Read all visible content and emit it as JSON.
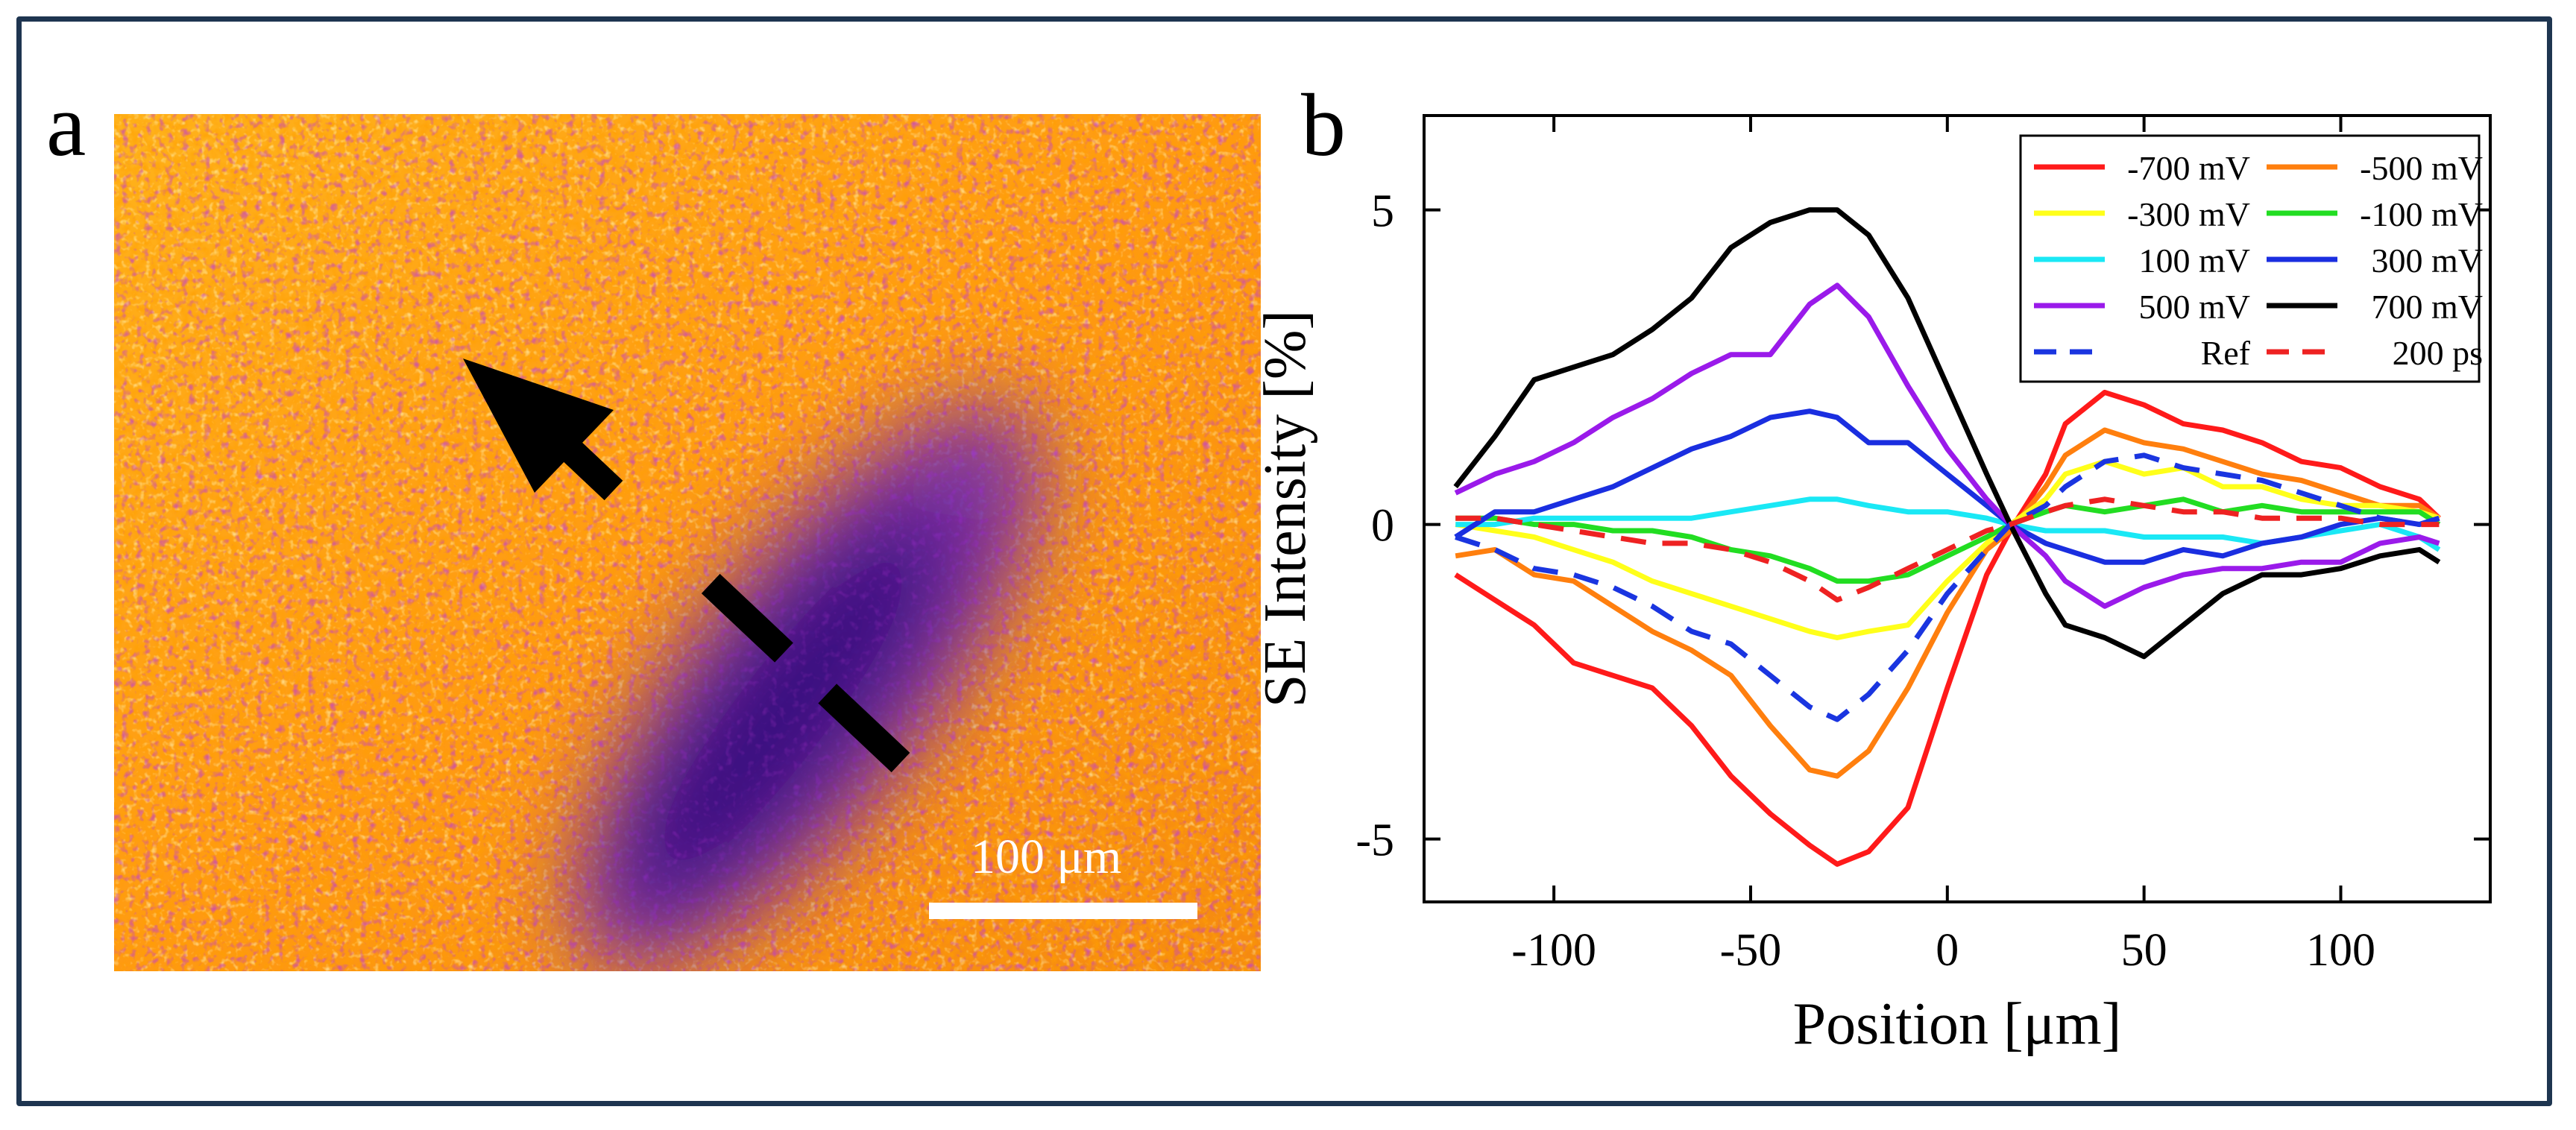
{
  "panels": {
    "a": "a",
    "b": "b"
  },
  "micrograph": {
    "scale_label": "100 μm",
    "arrow": "direction-of-profile"
  },
  "colors": {
    "frame": "#1e3550",
    "background": "#ffffff"
  },
  "chart_data": {
    "type": "line",
    "title": "",
    "xlabel": "Position [μm]",
    "ylabel": "SE Intensity [%]",
    "xlim": [
      -133,
      138
    ],
    "ylim": [
      -6,
      6.5
    ],
    "xticks": [
      -100,
      -50,
      0,
      50,
      100
    ],
    "yticks": [
      -5,
      0,
      5
    ],
    "grid": false,
    "legend_location": "top-right",
    "series": [
      {
        "name": "-700 mV",
        "color": "#ff1a1a",
        "dash": "solid",
        "x": [
          -125,
          -115,
          -105,
          -95,
          -85,
          -75,
          -65,
          -55,
          -45,
          -35,
          -28,
          -20,
          -10,
          0,
          10,
          16,
          25,
          30,
          40,
          50,
          60,
          70,
          80,
          90,
          100,
          110,
          120,
          125
        ],
        "y": [
          -0.8,
          -1.2,
          -1.6,
          -2.2,
          -2.4,
          -2.6,
          -3.2,
          -4.0,
          -4.6,
          -5.1,
          -5.4,
          -5.2,
          -4.5,
          -2.6,
          -0.8,
          -0.1,
          0.8,
          1.6,
          2.1,
          1.9,
          1.6,
          1.5,
          1.3,
          1.0,
          0.9,
          0.6,
          0.4,
          0.1
        ]
      },
      {
        "name": "-500 mV",
        "color": "#ff7f0e",
        "dash": "solid",
        "x": [
          -125,
          -115,
          -105,
          -95,
          -85,
          -75,
          -65,
          -55,
          -45,
          -35,
          -28,
          -20,
          -10,
          0,
          10,
          16,
          25,
          30,
          40,
          50,
          60,
          70,
          80,
          90,
          100,
          110,
          120,
          125
        ],
        "y": [
          -0.5,
          -0.4,
          -0.8,
          -0.9,
          -1.3,
          -1.7,
          -2.0,
          -2.4,
          -3.2,
          -3.9,
          -4.0,
          -3.6,
          -2.6,
          -1.4,
          -0.4,
          -0.1,
          0.6,
          1.1,
          1.5,
          1.3,
          1.2,
          1.0,
          0.8,
          0.7,
          0.5,
          0.3,
          0.3,
          0.1
        ]
      },
      {
        "name": "-300 mV",
        "color": "#ffff1a",
        "dash": "solid",
        "x": [
          -125,
          -115,
          -105,
          -95,
          -85,
          -75,
          -65,
          -55,
          -45,
          -35,
          -28,
          -20,
          -10,
          0,
          10,
          16,
          25,
          30,
          40,
          50,
          60,
          70,
          80,
          90,
          100,
          110,
          120,
          125
        ],
        "y": [
          0.0,
          -0.1,
          -0.2,
          -0.4,
          -0.6,
          -0.9,
          -1.1,
          -1.3,
          -1.5,
          -1.7,
          -1.8,
          -1.7,
          -1.6,
          -0.9,
          -0.3,
          0.0,
          0.4,
          0.8,
          1.0,
          0.8,
          0.9,
          0.6,
          0.6,
          0.4,
          0.3,
          0.3,
          0.2,
          0.1
        ]
      },
      {
        "name": "-100 mV",
        "color": "#22dd22",
        "dash": "solid",
        "x": [
          -125,
          -115,
          -105,
          -95,
          -85,
          -75,
          -65,
          -55,
          -45,
          -35,
          -28,
          -20,
          -10,
          0,
          10,
          16,
          25,
          30,
          40,
          50,
          60,
          70,
          80,
          90,
          100,
          110,
          120,
          125
        ],
        "y": [
          0.1,
          0.1,
          0.0,
          0.0,
          -0.1,
          -0.1,
          -0.2,
          -0.4,
          -0.5,
          -0.7,
          -0.9,
          -0.9,
          -0.8,
          -0.5,
          -0.2,
          0.0,
          0.2,
          0.3,
          0.2,
          0.3,
          0.4,
          0.2,
          0.3,
          0.2,
          0.2,
          0.2,
          0.2,
          0.0
        ]
      },
      {
        "name": "100 mV",
        "color": "#1ae8f5",
        "dash": "solid",
        "x": [
          -125,
          -115,
          -105,
          -95,
          -85,
          -75,
          -65,
          -55,
          -45,
          -35,
          -28,
          -20,
          -10,
          0,
          10,
          16,
          25,
          30,
          40,
          50,
          60,
          70,
          80,
          90,
          100,
          110,
          120,
          125
        ],
        "y": [
          0.0,
          0.0,
          0.1,
          0.1,
          0.1,
          0.1,
          0.1,
          0.2,
          0.3,
          0.4,
          0.4,
          0.3,
          0.2,
          0.2,
          0.1,
          0.0,
          -0.1,
          -0.1,
          -0.1,
          -0.2,
          -0.2,
          -0.2,
          -0.3,
          -0.2,
          -0.1,
          0.0,
          -0.2,
          -0.4
        ]
      },
      {
        "name": "300 mV",
        "color": "#1a2ee0",
        "dash": "solid",
        "x": [
          -125,
          -115,
          -105,
          -95,
          -85,
          -75,
          -65,
          -55,
          -45,
          -35,
          -28,
          -20,
          -10,
          0,
          10,
          16,
          25,
          30,
          40,
          50,
          60,
          70,
          80,
          90,
          100,
          110,
          120,
          125
        ],
        "y": [
          -0.2,
          0.2,
          0.2,
          0.4,
          0.6,
          0.9,
          1.2,
          1.4,
          1.7,
          1.8,
          1.7,
          1.3,
          1.3,
          0.8,
          0.3,
          0.0,
          -0.3,
          -0.4,
          -0.6,
          -0.6,
          -0.4,
          -0.5,
          -0.3,
          -0.2,
          0.0,
          0.1,
          0.0,
          0.1
        ]
      },
      {
        "name": "500 mV",
        "color": "#9a1aea",
        "dash": "solid",
        "x": [
          -125,
          -115,
          -105,
          -95,
          -85,
          -75,
          -65,
          -55,
          -45,
          -35,
          -28,
          -20,
          -10,
          0,
          10,
          16,
          25,
          30,
          40,
          50,
          60,
          70,
          80,
          90,
          100,
          110,
          120,
          125
        ],
        "y": [
          0.5,
          0.8,
          1.0,
          1.3,
          1.7,
          2.0,
          2.4,
          2.7,
          2.7,
          3.5,
          3.8,
          3.3,
          2.2,
          1.2,
          0.4,
          0.0,
          -0.5,
          -0.9,
          -1.3,
          -1.0,
          -0.8,
          -0.7,
          -0.7,
          -0.6,
          -0.6,
          -0.3,
          -0.2,
          -0.3
        ]
      },
      {
        "name": "700 mV",
        "color": "#000000",
        "dash": "solid",
        "x": [
          -125,
          -115,
          -105,
          -95,
          -85,
          -75,
          -65,
          -55,
          -45,
          -35,
          -28,
          -20,
          -10,
          0,
          10,
          16,
          25,
          30,
          40,
          50,
          60,
          70,
          80,
          90,
          100,
          110,
          120,
          125
        ],
        "y": [
          0.6,
          1.4,
          2.3,
          2.5,
          2.7,
          3.1,
          3.6,
          4.4,
          4.8,
          5.0,
          5.0,
          4.6,
          3.6,
          2.2,
          0.8,
          0.0,
          -1.1,
          -1.6,
          -1.8,
          -2.1,
          -1.6,
          -1.1,
          -0.8,
          -0.8,
          -0.7,
          -0.5,
          -0.4,
          -0.6
        ]
      },
      {
        "name": "Ref",
        "color": "#1a35e0",
        "dash": "dashed",
        "x": [
          -125,
          -115,
          -105,
          -95,
          -85,
          -75,
          -65,
          -55,
          -45,
          -35,
          -28,
          -20,
          -10,
          0,
          10,
          16,
          25,
          30,
          40,
          50,
          60,
          70,
          80,
          90,
          100,
          110,
          120,
          125
        ],
        "y": [
          -0.2,
          -0.4,
          -0.7,
          -0.8,
          -1.0,
          -1.3,
          -1.7,
          -1.9,
          -2.4,
          -2.9,
          -3.1,
          -2.7,
          -2.0,
          -1.1,
          -0.4,
          0.0,
          0.3,
          0.6,
          1.0,
          1.1,
          0.9,
          0.8,
          0.7,
          0.5,
          0.3,
          0.1,
          0.0,
          0.1
        ]
      },
      {
        "name": "200 ps",
        "color": "#ee2222",
        "dash": "dashed",
        "x": [
          -125,
          -115,
          -105,
          -95,
          -85,
          -75,
          -65,
          -55,
          -45,
          -35,
          -28,
          -20,
          -10,
          0,
          10,
          16,
          25,
          30,
          40,
          50,
          60,
          70,
          80,
          90,
          100,
          110,
          120,
          125
        ],
        "y": [
          0.1,
          0.1,
          0.0,
          -0.1,
          -0.2,
          -0.3,
          -0.3,
          -0.4,
          -0.6,
          -0.9,
          -1.2,
          -1.0,
          -0.7,
          -0.4,
          -0.1,
          0.0,
          0.2,
          0.3,
          0.4,
          0.3,
          0.2,
          0.2,
          0.1,
          0.1,
          0.1,
          0.0,
          0.0,
          0.0
        ]
      }
    ]
  }
}
